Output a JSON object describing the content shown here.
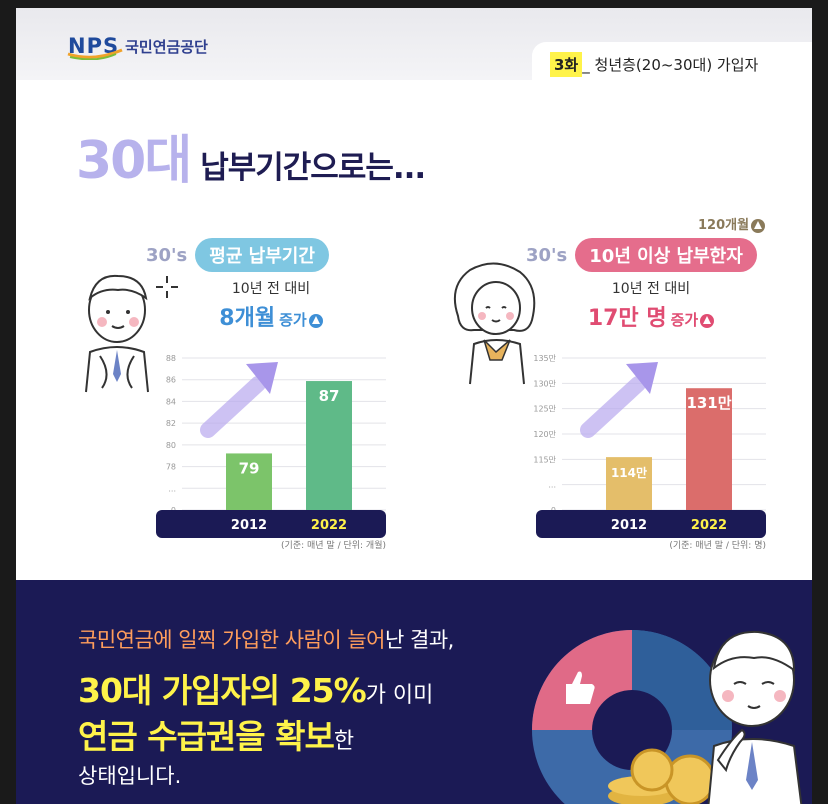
{
  "header": {
    "logo_text": "NPS",
    "org_name": "국민연금공단",
    "episode_tag": "3화",
    "episode_title": "_ 청년층(20~30대) 가입자"
  },
  "headline": {
    "big": "30대",
    "rest": "납부기간으로는..."
  },
  "colors": {
    "navy": "#1b1a55",
    "highlight": "#fff34a",
    "blue": "#3e8fd6",
    "pink": "#e04c72"
  },
  "left_panel": {
    "age": "30's",
    "pill": "평균 납부기간",
    "sub": "10년 전 대비",
    "stat": "8개월",
    "inc": "증가"
  },
  "right_panel": {
    "age": "30's",
    "pill": "10년 이상 납부한자",
    "above": "120개월",
    "sub": "10년 전 대비",
    "stat": "17만 명",
    "inc": "증가"
  },
  "chart_data": [
    {
      "type": "bar",
      "categories": [
        "2012",
        "2022"
      ],
      "values": [
        79,
        87
      ],
      "value_labels": [
        "79",
        "87"
      ],
      "yticks": [
        "0",
        "...",
        "78",
        "80",
        "82",
        "84",
        "86",
        "88"
      ],
      "ylim": [
        76,
        88
      ],
      "colors": [
        "#7cc46a",
        "#5fba88"
      ],
      "note": "(기준: 매년 말 / 단위: 개월)"
    },
    {
      "type": "bar",
      "categories": [
        "2012",
        "2022"
      ],
      "values": [
        114,
        131
      ],
      "value_labels": [
        "114만",
        "131만"
      ],
      "yticks": [
        "0",
        "...",
        "115만",
        "120만",
        "125만",
        "130만",
        "135만"
      ],
      "ylim": [
        110,
        135
      ],
      "colors": [
        "#e4be6a",
        "#db6d6b"
      ],
      "note": "(기준: 매년 말 / 단위: 명)"
    }
  ],
  "bottom": {
    "line1_hl": "국민연금에 일찍 가입한 사람이 늘어",
    "line1_rest": "난 결과,",
    "line2_big": "30대 가입자의 25%",
    "line2_rest": "가 이미",
    "line3_big": "연금 수급권을 확보",
    "line3_rest": "한",
    "line4": "상태입니다."
  }
}
